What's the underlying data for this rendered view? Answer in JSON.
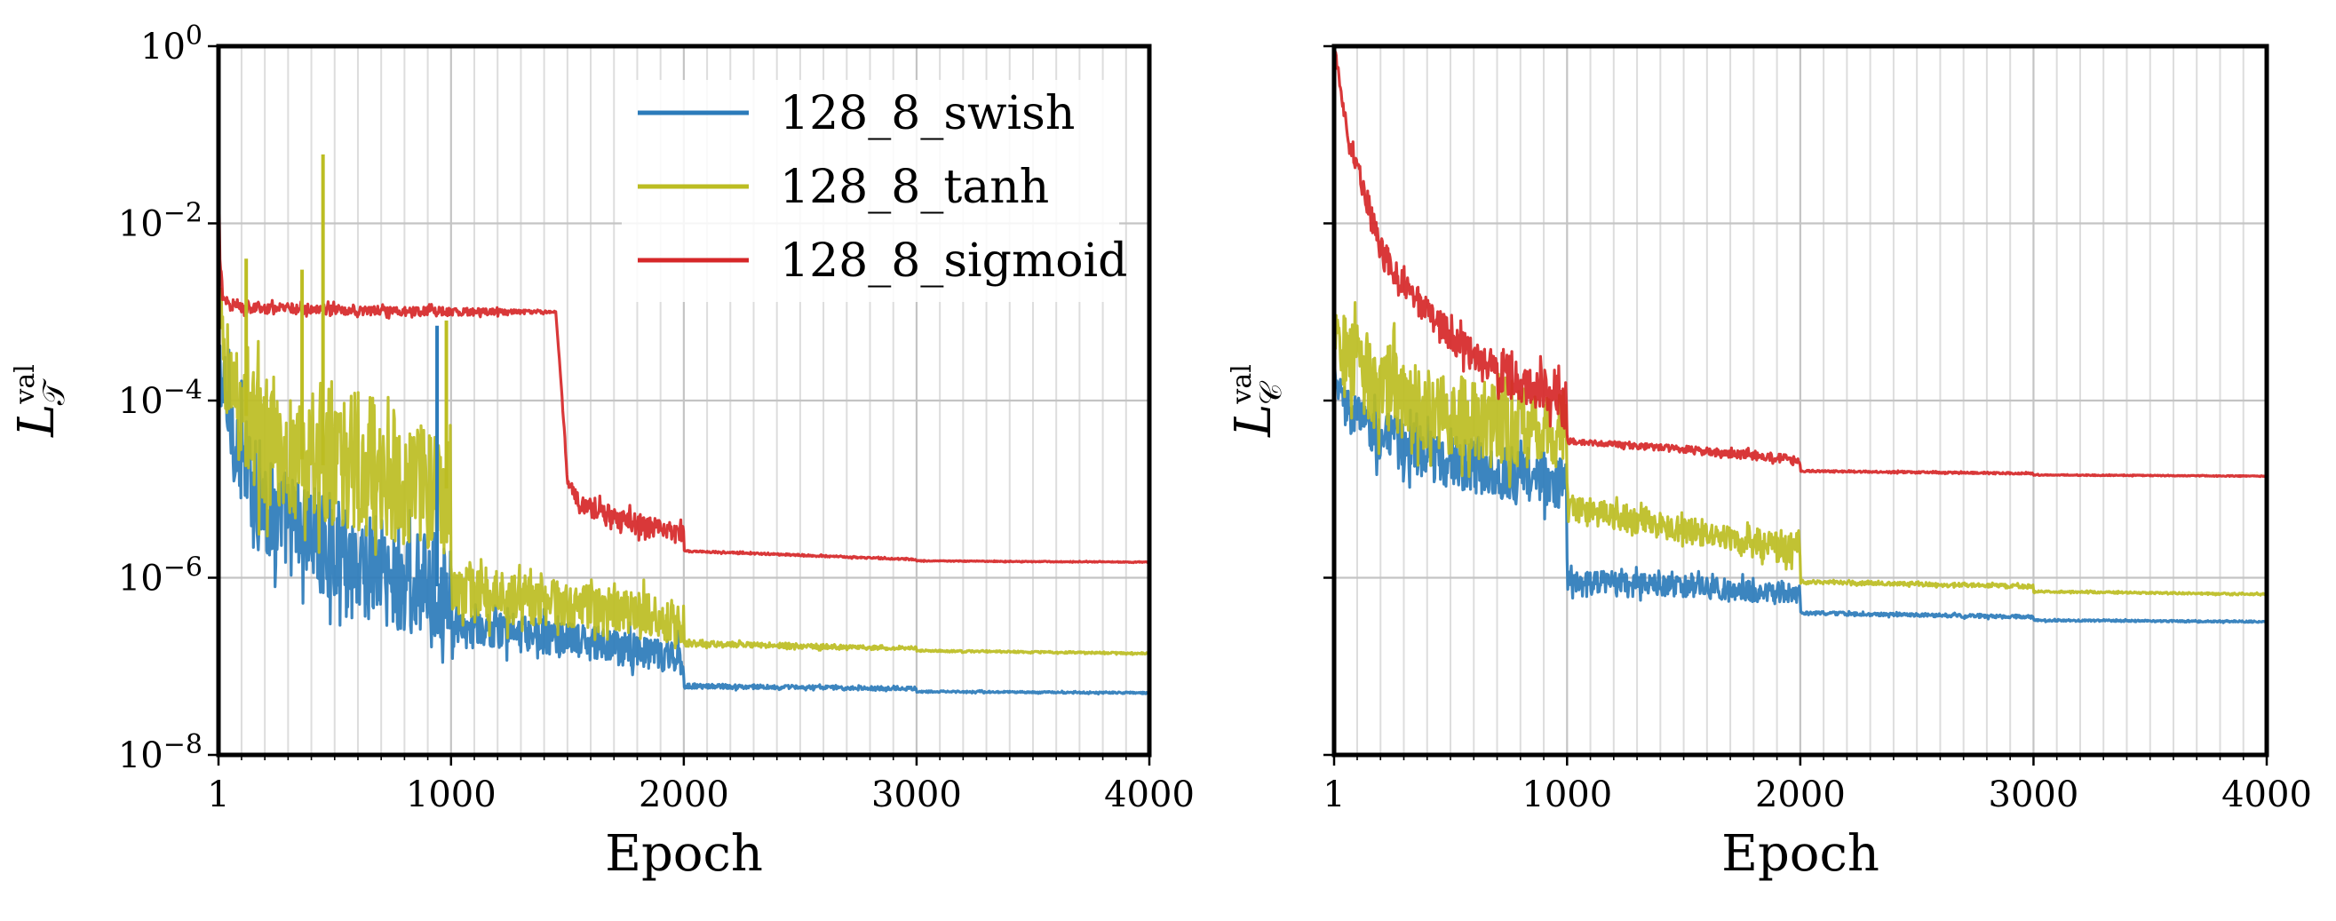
{
  "chart_data": [
    {
      "type": "line",
      "panel": "left",
      "y_scale": "log",
      "xlabel": "Epoch",
      "ylabel": {
        "base": "L",
        "superscript": "val",
        "subscript": "𝒯"
      },
      "xlim": [
        1,
        4000
      ],
      "ylim": [
        1e-08,
        1
      ],
      "x_ticks": [
        {
          "value": 1,
          "label": "1"
        },
        {
          "value": 1000,
          "label": "1000"
        },
        {
          "value": 2000,
          "label": "2000"
        },
        {
          "value": 3000,
          "label": "3000"
        },
        {
          "value": 4000,
          "label": "4000"
        }
      ],
      "y_ticks": [
        {
          "value": 1,
          "base": "10",
          "exp": "0"
        },
        {
          "value": 0.01,
          "base": "10",
          "exp": "−2"
        },
        {
          "value": 0.0001,
          "base": "10",
          "exp": "−4"
        },
        {
          "value": 1e-06,
          "base": "10",
          "exp": "−6"
        },
        {
          "value": 1e-08,
          "base": "10",
          "exp": "−8"
        }
      ],
      "grid": true,
      "legend": "top-center",
      "series": [
        {
          "name": "128_8_swish",
          "color": "#2b7bba",
          "x": [
            1,
            30,
            80,
            200,
            400,
            600,
            800,
            999,
            1000,
            1001,
            1200,
            1500,
            1800,
            1999,
            2000,
            2001,
            2500,
            2999,
            3000,
            3001,
            3500,
            4000
          ],
          "y": [
            0.0003,
            0.0001,
            3e-05,
            6e-06,
            3e-06,
            1.5e-06,
            8e-07,
            8e-07,
            6e-07,
            2.5e-07,
            2.5e-07,
            2e-07,
            1.5e-07,
            1.2e-07,
            6e-08,
            6e-08,
            5.8e-08,
            5.6e-08,
            5.2e-08,
            5.2e-08,
            5.1e-08,
            5e-08
          ],
          "noise": [
            0.3,
            0.5,
            0.55,
            0.6,
            0.6,
            0.6,
            0.6,
            0.6,
            0.2,
            0.2,
            0.2,
            0.2,
            0.2,
            0.2,
            0.03,
            0.03,
            0.02,
            0.02,
            0.01,
            0.01,
            0.01,
            0.01
          ]
        },
        {
          "name": "128_8_tanh",
          "color": "#bcbd22",
          "x": [
            1,
            30,
            80,
            200,
            400,
            600,
            800,
            999,
            1000,
            1001,
            1200,
            1500,
            1800,
            1999,
            2000,
            2001,
            2500,
            2999,
            3000,
            3001,
            3500,
            4000
          ],
          "y": [
            0.001,
            0.0003,
            0.0001,
            3e-05,
            2e-05,
            1.5e-05,
            1.2e-05,
            1e-05,
            1e-06,
            8e-07,
            6e-07,
            5e-07,
            4e-07,
            3e-07,
            1.8e-07,
            1.8e-07,
            1.7e-07,
            1.6e-07,
            1.5e-07,
            1.5e-07,
            1.45e-07,
            1.4e-07
          ],
          "noise": [
            0.4,
            0.6,
            0.65,
            0.7,
            0.7,
            0.7,
            0.7,
            0.7,
            0.3,
            0.3,
            0.3,
            0.25,
            0.25,
            0.25,
            0.03,
            0.03,
            0.03,
            0.02,
            0.01,
            0.01,
            0.01,
            0.01
          ]
        },
        {
          "name": "128_8_sigmoid",
          "color": "#d62728",
          "x": [
            1,
            5,
            20,
            60,
            200,
            1000,
            1450,
            1470,
            1500,
            1550,
            1800,
            1999,
            2000,
            2001,
            2500,
            2999,
            3000,
            3001,
            3500,
            4000
          ],
          "y": [
            0.3,
            0.005,
            0.0015,
            0.0012,
            0.0011,
            0.001,
            0.001,
            0.0002,
            1.3e-05,
            7e-06,
            4e-06,
            3e-06,
            2e-06,
            2e-06,
            1.8e-06,
            1.6e-06,
            1.55e-06,
            1.55e-06,
            1.52e-06,
            1.5e-06
          ],
          "noise": [
            0.02,
            0.05,
            0.08,
            0.08,
            0.06,
            0.05,
            0.01,
            0.01,
            0.05,
            0.12,
            0.12,
            0.12,
            0.02,
            0.01,
            0.01,
            0.01,
            0.01,
            0.005,
            0.005,
            0.005
          ]
        }
      ],
      "spikes": [
        {
          "series": 1,
          "x": 450,
          "y": 0.06
        },
        {
          "series": 1,
          "x": 120,
          "y": 0.004
        },
        {
          "series": 1,
          "x": 360,
          "y": 0.003
        },
        {
          "series": 1,
          "x": 980,
          "y": 0.0008
        },
        {
          "series": 0,
          "x": 940,
          "y": 0.0007
        }
      ]
    },
    {
      "type": "line",
      "panel": "right",
      "y_scale": "log",
      "xlabel": "Epoch",
      "ylabel": {
        "base": "L",
        "superscript": "val",
        "subscript": "𝒞"
      },
      "xlim": [
        1,
        4000
      ],
      "ylim": [
        1e-08,
        1
      ],
      "x_ticks": [
        {
          "value": 1,
          "label": "1"
        },
        {
          "value": 1000,
          "label": "1000"
        },
        {
          "value": 2000,
          "label": "2000"
        },
        {
          "value": 3000,
          "label": "3000"
        },
        {
          "value": 4000,
          "label": "4000"
        }
      ],
      "y_ticks_shared": true,
      "grid": true,
      "series": [
        {
          "name": "128_8_swish",
          "color": "#2b7bba",
          "x": [
            1,
            50,
            200,
            400,
            600,
            800,
            999,
            1000,
            1001,
            1200,
            1500,
            1800,
            1999,
            2000,
            2001,
            2500,
            2999,
            3000,
            3001,
            4000
          ],
          "y": [
            0.0002,
            8e-05,
            4e-05,
            2.5e-05,
            1.8e-05,
            1.4e-05,
            1.2e-05,
            2e-06,
            9e-07,
            9e-07,
            8e-07,
            7e-07,
            6.5e-07,
            4e-07,
            4e-07,
            3.8e-07,
            3.6e-07,
            3.3e-07,
            3.3e-07,
            3.2e-07
          ],
          "noise": [
            0.1,
            0.25,
            0.3,
            0.3,
            0.3,
            0.3,
            0.3,
            0.1,
            0.12,
            0.12,
            0.12,
            0.12,
            0.12,
            0.02,
            0.02,
            0.02,
            0.02,
            0.01,
            0.01,
            0.01
          ]
        },
        {
          "name": "128_8_tanh",
          "color": "#bcbd22",
          "x": [
            1,
            50,
            200,
            400,
            600,
            800,
            999,
            1000,
            1001,
            1200,
            1500,
            1800,
            1999,
            2000,
            2001,
            2500,
            2999,
            3000,
            3001,
            4000
          ],
          "y": [
            0.001,
            0.0003,
            0.00015,
            8e-05,
            6e-05,
            5e-05,
            4.5e-05,
            1e-05,
            6e-06,
            5e-06,
            3.5e-06,
            2.5e-06,
            2.2e-06,
            9e-07,
            9e-07,
            8.5e-07,
            8e-07,
            7e-07,
            7e-07,
            6.5e-07
          ],
          "noise": [
            0.3,
            0.45,
            0.5,
            0.5,
            0.45,
            0.45,
            0.4,
            0.1,
            0.15,
            0.15,
            0.15,
            0.18,
            0.2,
            0.02,
            0.02,
            0.02,
            0.02,
            0.01,
            0.01,
            0.01
          ]
        },
        {
          "name": "128_8_sigmoid",
          "color": "#d62728",
          "x": [
            1,
            60,
            120,
            200,
            300,
            400,
            600,
            800,
            999,
            1000,
            1001,
            1200,
            1500,
            1800,
            1999,
            2000,
            2001,
            2500,
            2999,
            3000,
            3001,
            4000
          ],
          "y": [
            1,
            0.1,
            0.03,
            0.005,
            0.002,
            0.001,
            0.0003,
            0.00016,
            0.0001,
            4e-05,
            3.5e-05,
            3.2e-05,
            2.8e-05,
            2.4e-05,
            2.1e-05,
            1.7e-05,
            1.6e-05,
            1.55e-05,
            1.5e-05,
            1.45e-05,
            1.45e-05,
            1.4e-05
          ],
          "noise": [
            0.05,
            0.1,
            0.12,
            0.15,
            0.15,
            0.15,
            0.2,
            0.25,
            0.25,
            0.04,
            0.03,
            0.03,
            0.04,
            0.05,
            0.05,
            0.01,
            0.01,
            0.01,
            0.01,
            0.005,
            0.005,
            0.005
          ]
        }
      ],
      "spikes": []
    }
  ]
}
